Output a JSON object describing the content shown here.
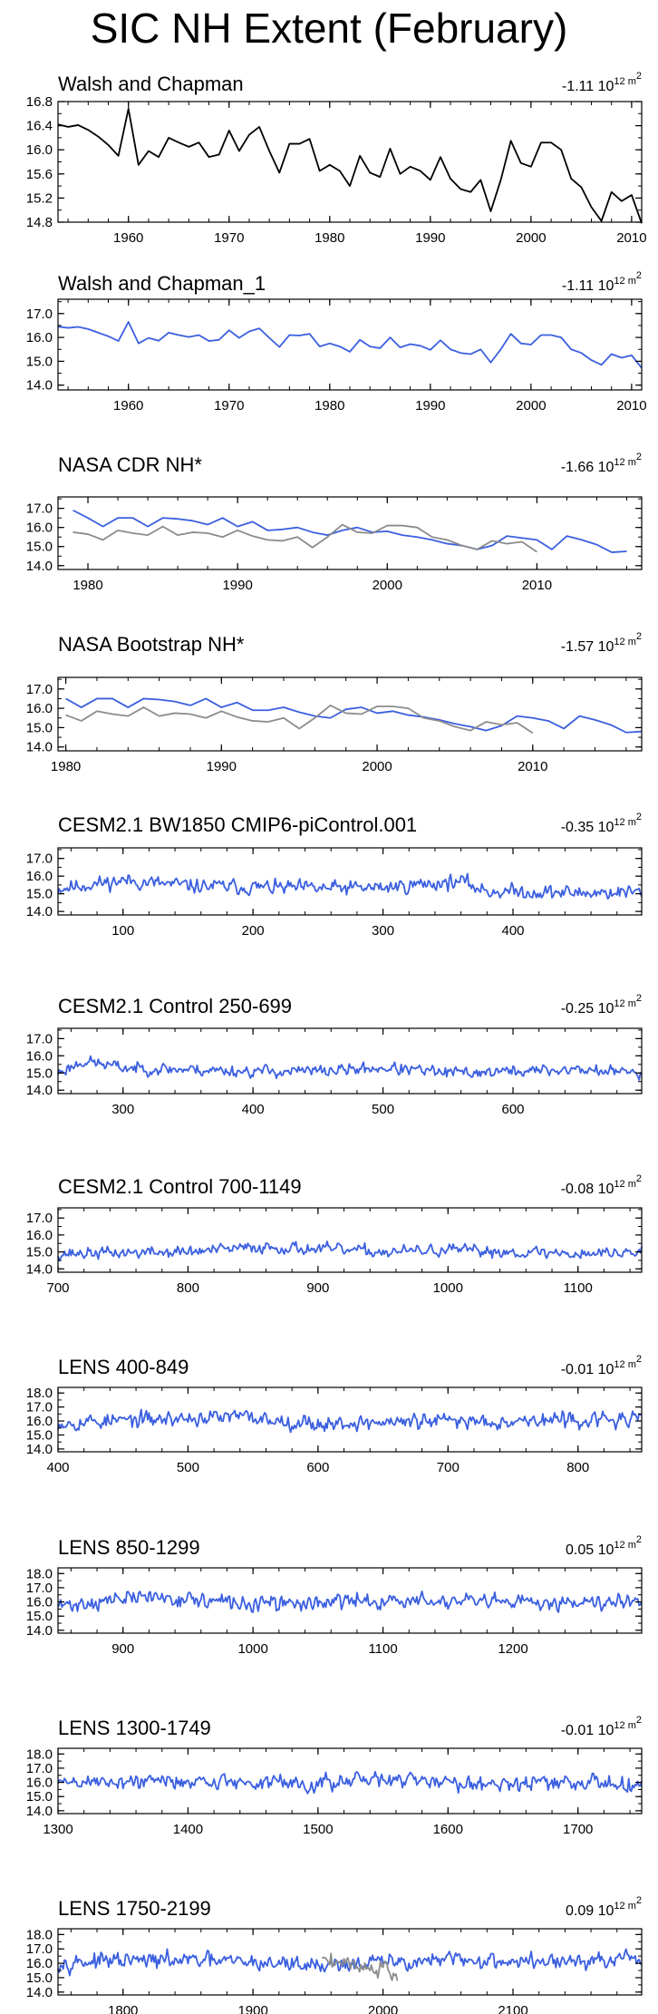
{
  "title": "SIC NH Extent (February)",
  "colors": {
    "axis": "#000000",
    "model": "#3b5fdf",
    "obs": "#000000",
    "grey": "#8c8c8c"
  },
  "chart_data": [
    {
      "type": "line",
      "title": "Walsh and Chapman",
      "trend_label": "-1.11 10",
      "trend_unit": "12 m",
      "trend_sup": "2",
      "xlim": [
        1953,
        2011
      ],
      "ylim": [
        14.8,
        16.8
      ],
      "yticks": [
        14.8,
        15.2,
        15.6,
        16.0,
        16.4,
        16.8
      ],
      "ytick_labels": [
        "14.8",
        "15.2",
        "15.6",
        "16.0",
        "16.4",
        "16.8"
      ],
      "xticks": [
        1960,
        1970,
        1980,
        1990,
        2000,
        2010
      ],
      "xtick_labels": [
        "1960",
        "1970",
        "1980",
        "1990",
        "2000",
        "2010"
      ],
      "series": [
        {
          "name": "Walsh and Chapman",
          "color": "black",
          "start": 1953,
          "values": [
            16.42,
            16.38,
            16.41,
            16.33,
            16.22,
            16.08,
            15.9,
            16.68,
            15.75,
            15.98,
            15.88,
            16.2,
            16.12,
            16.05,
            16.12,
            15.88,
            15.92,
            16.32,
            15.98,
            16.25,
            16.38,
            15.98,
            15.62,
            16.1,
            16.1,
            16.18,
            15.65,
            15.75,
            15.65,
            15.4,
            15.9,
            15.62,
            15.55,
            16.02,
            15.6,
            15.72,
            15.65,
            15.5,
            15.88,
            15.52,
            15.35,
            15.3,
            15.5,
            14.98,
            15.5,
            16.15,
            15.78,
            15.72,
            16.12,
            16.12,
            16.0,
            15.52,
            15.38,
            15.05,
            14.82,
            15.3,
            15.15,
            15.25,
            14.78
          ]
        }
      ]
    },
    {
      "type": "line",
      "title": "Walsh and Chapman_1",
      "trend_label": "-1.11 10",
      "trend_unit": "12 m",
      "trend_sup": "2",
      "xlim": [
        1953,
        2011
      ],
      "ylim": [
        13.8,
        17.6
      ],
      "yticks": [
        14.0,
        15.0,
        16.0,
        17.0
      ],
      "ytick_labels": [
        "14.0",
        "15.0",
        "16.0",
        "17.0"
      ],
      "xticks": [
        1960,
        1970,
        1980,
        1990,
        2000,
        2010
      ],
      "xtick_labels": [
        "1960",
        "1970",
        "1980",
        "1990",
        "2000",
        "2010"
      ],
      "series": [
        {
          "name": "Walsh and Chapman_1",
          "color": "blue",
          "start": 1953,
          "values": [
            16.45,
            16.4,
            16.44,
            16.35,
            16.2,
            16.05,
            15.85,
            16.65,
            15.75,
            15.98,
            15.86,
            16.2,
            16.1,
            16.02,
            16.1,
            15.85,
            15.9,
            16.3,
            15.98,
            16.25,
            16.38,
            15.98,
            15.6,
            16.1,
            16.08,
            16.15,
            15.62,
            15.75,
            15.62,
            15.4,
            15.9,
            15.62,
            15.55,
            16.0,
            15.58,
            15.72,
            15.65,
            15.48,
            15.88,
            15.5,
            15.35,
            15.3,
            15.5,
            14.95,
            15.5,
            16.15,
            15.75,
            15.7,
            16.1,
            16.1,
            16.0,
            15.5,
            15.35,
            15.05,
            14.85,
            15.3,
            15.15,
            15.25,
            14.72
          ]
        }
      ]
    },
    {
      "type": "line",
      "title": "NASA CDR NH*",
      "trend_label": "-1.66 10",
      "trend_unit": "12 m",
      "trend_sup": "2",
      "xlim": [
        1978,
        2017
      ],
      "ylim": [
        13.8,
        17.6
      ],
      "yticks": [
        14.0,
        15.0,
        16.0,
        17.0
      ],
      "ytick_labels": [
        "14.0",
        "15.0",
        "16.0",
        "17.0"
      ],
      "xticks": [
        1980,
        1990,
        2000,
        2010
      ],
      "xtick_labels": [
        "1980",
        "1990",
        "2000",
        "2010"
      ],
      "series": [
        {
          "name": "NASA CDR",
          "color": "blue",
          "start": 1979,
          "values": [
            16.9,
            16.5,
            16.05,
            16.5,
            16.5,
            16.05,
            16.5,
            16.45,
            16.35,
            16.15,
            16.5,
            16.05,
            16.3,
            15.85,
            15.9,
            16.0,
            15.75,
            15.6,
            15.85,
            16.0,
            15.75,
            15.8,
            15.6,
            15.5,
            15.35,
            15.15,
            15.05,
            14.85,
            15.05,
            15.55,
            15.45,
            15.35,
            14.85,
            15.55,
            15.35,
            15.1,
            14.7,
            14.75
          ]
        },
        {
          "name": "Walsh and Chapman",
          "color": "grey",
          "start": 1979,
          "values": [
            15.75,
            15.65,
            15.35,
            15.85,
            15.7,
            15.6,
            16.05,
            15.6,
            15.75,
            15.7,
            15.5,
            15.85,
            15.55,
            15.35,
            15.3,
            15.5,
            14.95,
            15.5,
            16.15,
            15.75,
            15.7,
            16.1,
            16.1,
            16.0,
            15.5,
            15.35,
            15.05,
            14.85,
            15.3,
            15.15,
            15.25,
            14.72
          ]
        }
      ]
    },
    {
      "type": "line",
      "title": "NASA Bootstrap NH*",
      "trend_label": "-1.57 10",
      "trend_unit": "12 m",
      "trend_sup": "2",
      "xlim": [
        1979.5,
        2017
      ],
      "ylim": [
        13.8,
        17.6
      ],
      "yticks": [
        14.0,
        15.0,
        16.0,
        17.0
      ],
      "ytick_labels": [
        "14.0",
        "15.0",
        "16.0",
        "17.0"
      ],
      "xticks": [
        1980,
        1990,
        2000,
        2010
      ],
      "xtick_labels": [
        "1980",
        "1990",
        "2000",
        "2010"
      ],
      "series": [
        {
          "name": "NASA Bootstrap",
          "color": "blue",
          "start": 1980,
          "values": [
            16.5,
            16.05,
            16.5,
            16.5,
            16.05,
            16.5,
            16.45,
            16.35,
            16.15,
            16.5,
            16.05,
            16.3,
            15.9,
            15.9,
            16.05,
            15.8,
            15.6,
            15.5,
            15.95,
            16.05,
            15.75,
            15.85,
            15.65,
            15.55,
            15.4,
            15.2,
            15.05,
            14.85,
            15.1,
            15.6,
            15.5,
            15.35,
            14.95,
            15.6,
            15.4,
            15.15,
            14.75,
            14.8
          ]
        },
        {
          "name": "Walsh and Chapman",
          "color": "grey",
          "start": 1980,
          "values": [
            15.65,
            15.35,
            15.85,
            15.7,
            15.6,
            16.05,
            15.6,
            15.75,
            15.7,
            15.5,
            15.85,
            15.55,
            15.35,
            15.3,
            15.5,
            14.95,
            15.5,
            16.15,
            15.75,
            15.7,
            16.1,
            16.1,
            16.0,
            15.5,
            15.35,
            15.05,
            14.85,
            15.3,
            15.15,
            15.25,
            14.72
          ]
        }
      ]
    },
    {
      "type": "line",
      "title": "CESM2.1 BW1850 CMIP6-piControl.001",
      "trend_label": "-0.35 10",
      "trend_unit": "12 m",
      "trend_sup": "2",
      "xlim": [
        50,
        499
      ],
      "ylim": [
        13.8,
        17.6
      ],
      "yticks": [
        14.0,
        15.0,
        16.0,
        17.0
      ],
      "ytick_labels": [
        "14.0",
        "15.0",
        "16.0",
        "17.0"
      ],
      "xticks": [
        100,
        200,
        300,
        400
      ],
      "xtick_labels": [
        "100",
        "200",
        "300",
        "400"
      ],
      "series": [
        {
          "name": "model",
          "color": "blue",
          "noise": {
            "start": 50,
            "n": 450,
            "amp": 0.3,
            "seed": 11,
            "knots": [
              [
                50,
                15.3
              ],
              [
                100,
                15.75
              ],
              [
                150,
                15.45
              ],
              [
                250,
                15.3
              ],
              [
                300,
                15.35
              ],
              [
                340,
                15.6
              ],
              [
                360,
                15.7
              ],
              [
                380,
                15.15
              ],
              [
                450,
                15.05
              ],
              [
                499,
                15.1
              ]
            ]
          }
        }
      ]
    },
    {
      "type": "line",
      "title": "CESM2.1 Control 250-699",
      "trend_label": "-0.25 10",
      "trend_unit": "12 m",
      "trend_sup": "2",
      "xlim": [
        250,
        699
      ],
      "ylim": [
        13.8,
        17.6
      ],
      "yticks": [
        14.0,
        15.0,
        16.0,
        17.0
      ],
      "ytick_labels": [
        "14.0",
        "15.0",
        "16.0",
        "17.0"
      ],
      "xticks": [
        300,
        400,
        500,
        600
      ],
      "xtick_labels": [
        "300",
        "400",
        "500",
        "600"
      ],
      "series": [
        {
          "name": "model",
          "color": "blue",
          "noise": {
            "start": 250,
            "n": 450,
            "amp": 0.25,
            "seed": 23,
            "knots": [
              [
                250,
                15.0
              ],
              [
                270,
                15.7
              ],
              [
                300,
                15.3
              ],
              [
                400,
                15.1
              ],
              [
                450,
                15.1
              ],
              [
                500,
                15.3
              ],
              [
                550,
                15.0
              ],
              [
                650,
                15.2
              ],
              [
                699,
                15.0
              ]
            ]
          }
        }
      ]
    },
    {
      "type": "line",
      "title": "CESM2.1 Control 700-1149",
      "trend_label": "-0.08 10",
      "trend_unit": "12 m",
      "trend_sup": "2",
      "xlim": [
        700,
        1149
      ],
      "ylim": [
        13.8,
        17.6
      ],
      "yticks": [
        14.0,
        15.0,
        16.0,
        17.0
      ],
      "ytick_labels": [
        "14.0",
        "15.0",
        "16.0",
        "17.0"
      ],
      "xticks": [
        700,
        800,
        900,
        1000,
        1100
      ],
      "xtick_labels": [
        "700",
        "800",
        "900",
        "1000",
        "1100"
      ],
      "series": [
        {
          "name": "model",
          "color": "blue",
          "noise": {
            "start": 700,
            "n": 450,
            "amp": 0.25,
            "seed": 37,
            "knots": [
              [
                700,
                14.9
              ],
              [
                800,
                15.0
              ],
              [
                860,
                15.3
              ],
              [
                950,
                15.0
              ],
              [
                1000,
                15.1
              ],
              [
                1100,
                14.9
              ],
              [
                1149,
                15.0
              ]
            ]
          }
        }
      ]
    },
    {
      "type": "line",
      "title": "LENS 400-849",
      "trend_label": "-0.01 10",
      "trend_unit": "12 m",
      "trend_sup": "2",
      "xlim": [
        400,
        849
      ],
      "ylim": [
        13.8,
        18.4
      ],
      "yticks": [
        14.0,
        15.0,
        16.0,
        17.0,
        18.0
      ],
      "ytick_labels": [
        "14.0",
        "15.0",
        "16.0",
        "17.0",
        "18.0"
      ],
      "xticks": [
        400,
        500,
        600,
        700,
        800
      ],
      "xtick_labels": [
        "400",
        "500",
        "600",
        "700",
        "800"
      ],
      "series": [
        {
          "name": "LENS",
          "color": "blue",
          "noise": {
            "start": 400,
            "n": 450,
            "amp": 0.4,
            "seed": 53,
            "knots": [
              [
                400,
                15.9
              ],
              [
                540,
                16.3
              ],
              [
                600,
                15.8
              ],
              [
                700,
                16.0
              ],
              [
                849,
                16.1
              ]
            ]
          }
        }
      ]
    },
    {
      "type": "line",
      "title": "LENS 850-1299",
      "trend_label": "0.05 10",
      "trend_unit": "12 m",
      "trend_sup": "2",
      "xlim": [
        850,
        1299
      ],
      "ylim": [
        13.8,
        18.4
      ],
      "yticks": [
        14.0,
        15.0,
        16.0,
        17.0,
        18.0
      ],
      "ytick_labels": [
        "14.0",
        "15.0",
        "16.0",
        "17.0",
        "18.0"
      ],
      "xticks": [
        900,
        1000,
        1100,
        1200
      ],
      "xtick_labels": [
        "900",
        "1000",
        "1100",
        "1200"
      ],
      "series": [
        {
          "name": "LENS",
          "color": "blue",
          "noise": {
            "start": 850,
            "n": 450,
            "amp": 0.4,
            "seed": 71,
            "knots": [
              [
                850,
                15.7
              ],
              [
                920,
                16.4
              ],
              [
                1000,
                15.8
              ],
              [
                1100,
                16.1
              ],
              [
                1200,
                15.9
              ],
              [
                1299,
                16.2
              ]
            ]
          }
        }
      ]
    },
    {
      "type": "line",
      "title": "LENS 1300-1749",
      "trend_label": "-0.01 10",
      "trend_unit": "12 m",
      "trend_sup": "2",
      "xlim": [
        1300,
        1749
      ],
      "ylim": [
        13.8,
        18.4
      ],
      "yticks": [
        14.0,
        15.0,
        16.0,
        17.0,
        18.0
      ],
      "ytick_labels": [
        "14.0",
        "15.0",
        "16.0",
        "17.0",
        "18.0"
      ],
      "xticks": [
        1300,
        1400,
        1500,
        1600,
        1700
      ],
      "xtick_labels": [
        "1300",
        "1400",
        "1500",
        "1600",
        "1700"
      ],
      "series": [
        {
          "name": "LENS",
          "color": "blue",
          "noise": {
            "start": 1300,
            "n": 450,
            "amp": 0.4,
            "seed": 89,
            "knots": [
              [
                1300,
                16.0
              ],
              [
                1400,
                16.1
              ],
              [
                1500,
                15.9
              ],
              [
                1550,
                16.2
              ],
              [
                1650,
                15.9
              ],
              [
                1749,
                16.0
              ]
            ]
          }
        }
      ]
    },
    {
      "type": "line",
      "title": "LENS 1750-2199",
      "trend_label": "0.09 10",
      "trend_unit": "12 m",
      "trend_sup": "2",
      "xlim": [
        1750,
        2199
      ],
      "ylim": [
        13.8,
        18.4
      ],
      "yticks": [
        14.0,
        15.0,
        16.0,
        17.0,
        18.0
      ],
      "ytick_labels": [
        "14.0",
        "15.0",
        "16.0",
        "17.0",
        "18.0"
      ],
      "xticks": [
        1800,
        1900,
        2000,
        2100
      ],
      "xtick_labels": [
        "1800",
        "1900",
        "2000",
        "2100"
      ],
      "series": [
        {
          "name": "LENS",
          "color": "blue",
          "noise": {
            "start": 1750,
            "n": 450,
            "amp": 0.4,
            "seed": 97,
            "knots": [
              [
                1750,
                16.1
              ],
              [
                1850,
                16.2
              ],
              [
                1950,
                15.9
              ],
              [
                2050,
                16.2
              ],
              [
                2150,
                16.1
              ],
              [
                2199,
                16.2
              ]
            ]
          }
        },
        {
          "name": "Walsh and Chapman",
          "color": "grey",
          "start": 1953,
          "values": [
            16.42,
            16.38,
            16.41,
            16.33,
            16.22,
            16.08,
            15.9,
            16.68,
            15.75,
            15.98,
            15.88,
            16.2,
            16.12,
            16.05,
            16.12,
            15.88,
            15.92,
            16.32,
            15.98,
            16.25,
            16.38,
            15.98,
            15.62,
            16.1,
            16.1,
            16.18,
            15.65,
            15.75,
            15.65,
            15.4,
            15.9,
            15.62,
            15.55,
            16.02,
            15.6,
            15.72,
            15.65,
            15.5,
            15.88,
            15.52,
            15.35,
            15.3,
            15.5,
            14.98,
            15.5,
            16.15,
            15.78,
            15.72,
            16.12,
            16.12,
            16.0,
            15.52,
            15.38,
            15.05,
            14.82,
            15.3,
            15.15,
            15.25,
            14.78
          ]
        }
      ]
    }
  ]
}
